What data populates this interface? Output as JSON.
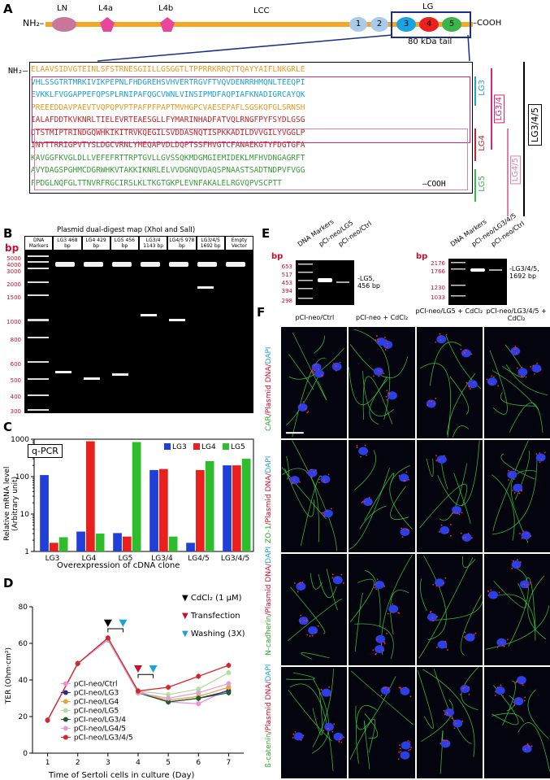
{
  "panels": {
    "A": "A",
    "B": "B",
    "C": "C",
    "D": "D",
    "E": "E",
    "F": "F"
  },
  "panelA": {
    "nh2": "NH₂–",
    "cooh": "–COOH",
    "ln": "LN",
    "l4a": "L4a",
    "l4b": "L4b",
    "lcc": "LCC",
    "lg": "LG",
    "domains": [
      "1",
      "2",
      "3",
      "4",
      "5"
    ],
    "tail": "80 kDa tail",
    "seq_nh2": "NH₂–",
    "seq_lines": [
      "ELAAVSIDVGTEINLSFSTRNESGIILLGSGGTLTPPRRKRRQTTQAYYAIFLNKGRLE",
      "VHLSSGTRTMRKIVIKPEPNLFHDGREHSVHVERTRGVFTVQVDENRRHMQNLTEEQPI",
      "EVKKLFVGGAPPEFQPSPLRNIPAFQGCVWNLVINSIPMDFAQPIAFKNADIGRCAYQK",
      "PREEEDDAVPAEVTVQPQPVPTPAFPFPAPTMVHGPCVAESEPAFLSGSKQFGLSRNSH",
      "IALAFDDTKVKNRLTIELEVRTEAESGLLFYMARINHADFATVQLRNGFPYFSYDLGSG",
      "DTSTMIPTRINDGQWHKIKITRVKQEGILSVDDASNQTISPKKADILDVVGILYVGGLP",
      "INYTTRRIGPVTYSLDGCVRNLYMEQAPVDLDQPTSSFHVGTCFANAEKGTYFDGTGFA",
      "KAVGGFKVGLDLLVEFEFRTTRPTGVLLGVSSQKMDGMGIEMIDEKLMFHVDNGAGRFT",
      "AVYDAGSPGHMCDGRWHKVTAKKIKNRLELVVDGNQVDAQSPNAASTSADTNDPVFVGG",
      "FPDGLNQFGLTTNVRFRGCIRSLKLTKGTGKPLEVNFAKALELRGVQPVSCPTT"
    ],
    "seq_cooh": "–COOH",
    "brackets": [
      "LG3",
      "LG3/4",
      "LG4",
      "LG4/5",
      "LG5",
      "LG3/4/5"
    ]
  },
  "panelB": {
    "header": "Plasmid dual-digest map (XhoI and SalI)",
    "lanes": [
      "DNA Markers",
      "LG3 468 bp",
      "LG4 429 bp",
      "LG5 456 bp",
      "LG3/4 1143 bp",
      "LG4/5 978 bp",
      "LG3/4/5 1692 bp",
      "Empty Vector"
    ],
    "unit": "bp",
    "ladder": [
      "5000",
      "4000",
      "3000",
      "2000",
      "1500",
      "1000",
      "800",
      "600",
      "500",
      "400",
      "300"
    ]
  },
  "panelC": {
    "badge": "q-PCR",
    "ylabel": "Relative mRNA level (Arbitrary unit)",
    "xlabel": "Overexpression of cDNA clone",
    "yticks": [
      "1",
      "10",
      "100",
      "1000"
    ]
  },
  "panelD": {
    "ylabel": "TER (Ohm·cm²)",
    "xlabel": "Time of Sertoli cells in culture (Day)",
    "cd_label": "CdCl₂ (1 μM)",
    "transfection": "Transfection",
    "washing": "Washing (3X)"
  },
  "panelE": {
    "left": {
      "lanes": [
        "DNA Markers",
        "pCI-neo/LG5",
        "pCI-neo/Ctrl"
      ],
      "unit": "bp",
      "ladder": [
        "653",
        "517",
        "453",
        "394",
        "298"
      ],
      "band": "-LG5,\n456 bp"
    },
    "right": {
      "lanes": [
        "DNA Markers",
        "pCI-neo/LG3/4/5",
        "pCI-neo/Ctrl"
      ],
      "unit": "bp",
      "ladder": [
        "2176",
        "1766",
        "1230",
        "1033"
      ],
      "band": "-LG3/4/5,\n1692 bp"
    }
  },
  "panelF": {
    "cols": [
      "pCI-neo/Ctrl",
      "pCI-neo + CdCl₂",
      "pCI-neo/LG5 + CdCl₂",
      "pCI-neo/LG3/4/5 + CdCl₂"
    ],
    "rows": [
      {
        "g": "CAR",
        "r": "/Plasmid DNA/",
        "b": "DAPI"
      },
      {
        "g": "ZO-1",
        "r": "/Plasmid DNA/",
        "b": "DAPI"
      },
      {
        "g": "N-cadherin",
        "r": "/Plasmid DNA/",
        "b": "DAPI"
      },
      {
        "g": "ß-catenin",
        "r": "/Plasmid DNA/",
        "b": "DAPI"
      }
    ]
  },
  "chart_data": [
    {
      "type": "bar",
      "title": "",
      "xlabel": "Overexpression of cDNA clone",
      "ylabel": "Relative mRNA level (Arbitrary unit)",
      "yscale": "log",
      "ylim": [
        1,
        1000
      ],
      "legend": "top-right",
      "categories": [
        "LG3",
        "LG4",
        "LG5",
        "LG3/4",
        "LG4/5",
        "LG3/4/5"
      ],
      "series": [
        {
          "name": "LG3",
          "color": "#1f3fd6",
          "values": [
            110,
            3.4,
            3.1,
            150,
            1.7,
            200
          ]
        },
        {
          "name": "LG4",
          "color": "#e8201e",
          "values": [
            1.7,
            880,
            2.5,
            160,
            150,
            200
          ]
        },
        {
          "name": "LG5",
          "color": "#2dbd2d",
          "values": [
            2.4,
            3.0,
            840,
            2.5,
            260,
            300
          ]
        }
      ]
    },
    {
      "type": "line",
      "title": "",
      "xlabel": "Time of Sertoli cells in culture (Day)",
      "ylabel": "TER (Ohm·cm²)",
      "xlim": [
        0.5,
        7.5
      ],
      "ylim": [
        0,
        80
      ],
      "yticks": [
        0,
        20,
        40,
        60,
        80
      ],
      "xticks": [
        1,
        2,
        3,
        4,
        5,
        6,
        7
      ],
      "x": [
        1,
        2,
        3,
        4,
        5,
        6,
        7
      ],
      "series": [
        {
          "name": "pCI-neo/Ctrl",
          "color": "#f28fd0",
          "values": [
            18,
            49,
            62,
            34,
            28,
            27,
            35
          ]
        },
        {
          "name": "pCI-neo/LG3",
          "color": "#2a2a8a",
          "values": [
            18,
            49,
            62,
            33,
            28,
            30,
            34
          ]
        },
        {
          "name": "pCI-neo/LG4",
          "color": "#e8a33d",
          "values": [
            18,
            49,
            62,
            33,
            29,
            31,
            36
          ]
        },
        {
          "name": "pCI-neo/LG5",
          "color": "#b5dca2",
          "values": [
            18,
            49,
            62,
            34,
            32,
            35,
            44
          ]
        },
        {
          "name": "pCI-neo/LG3/4",
          "color": "#1e5e2a",
          "values": [
            18,
            49,
            62,
            33,
            28,
            30,
            33
          ]
        },
        {
          "name": "pCI-neo/LG4/5",
          "color": "#d8a3d8",
          "values": [
            18,
            49,
            62,
            33,
            30,
            33,
            38
          ]
        },
        {
          "name": "pCI-neo/LG3/4/5",
          "color": "#d6282c",
          "values": [
            18,
            49,
            63,
            34,
            36,
            42,
            48
          ]
        }
      ]
    }
  ]
}
